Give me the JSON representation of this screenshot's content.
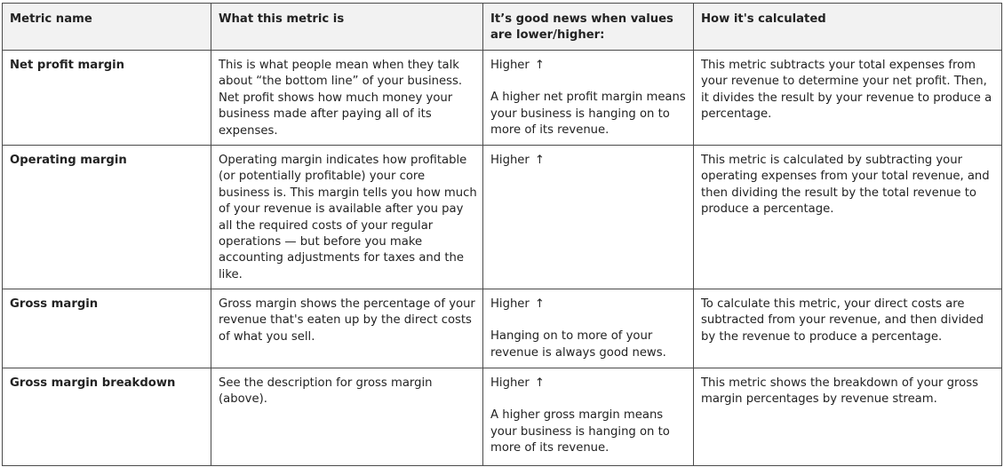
{
  "table": {
    "headers": [
      "Metric name",
      "What this metric is",
      "It’s good news when values are lower/higher:",
      "How it's calculated"
    ],
    "rows": [
      {
        "name": "Net profit margin",
        "description": "This is what people mean when they talk about “the bottom line” of your business. Net profit shows how much money your business made after paying all of its expenses.",
        "direction": "Higher",
        "direction_icon": "arrow-up",
        "direction_note": "A higher net profit margin means your business is hanging on to more of its revenue.",
        "calculation": "This metric subtracts your total expenses from your revenue to determine your net profit. Then, it divides the result by your revenue to produce a percentage."
      },
      {
        "name": "Operating margin",
        "description": "Operating margin indicates how profitable (or potentially profitable) your core business is. This margin tells you how much of your revenue is available after you pay all the required costs of your regular operations — but before you make accounting adjustments for taxes and the like.",
        "direction": "Higher",
        "direction_icon": "arrow-up",
        "direction_note": "",
        "calculation": "This metric is calculated by subtracting your operating expenses from your total revenue, and then dividing the result by the total revenue to produce a percentage."
      },
      {
        "name": "Gross margin",
        "description": "Gross margin shows the percentage of your revenue that's eaten up by the direct costs of what you sell.",
        "direction": "Higher",
        "direction_icon": "arrow-up",
        "direction_note": "Hanging on to more of your revenue is always good news.",
        "calculation": "To calculate this metric, your direct costs are subtracted from your revenue, and then divided by the revenue to produce a percentage."
      },
      {
        "name": "Gross margin breakdown",
        "description": "See the description for gross margin (above).",
        "direction": "Higher",
        "direction_icon": "arrow-up",
        "direction_note": "A higher gross margin means your business is hanging on to more of its revenue.",
        "calculation": "This metric shows the breakdown of your gross margin percentages by revenue stream."
      }
    ]
  }
}
